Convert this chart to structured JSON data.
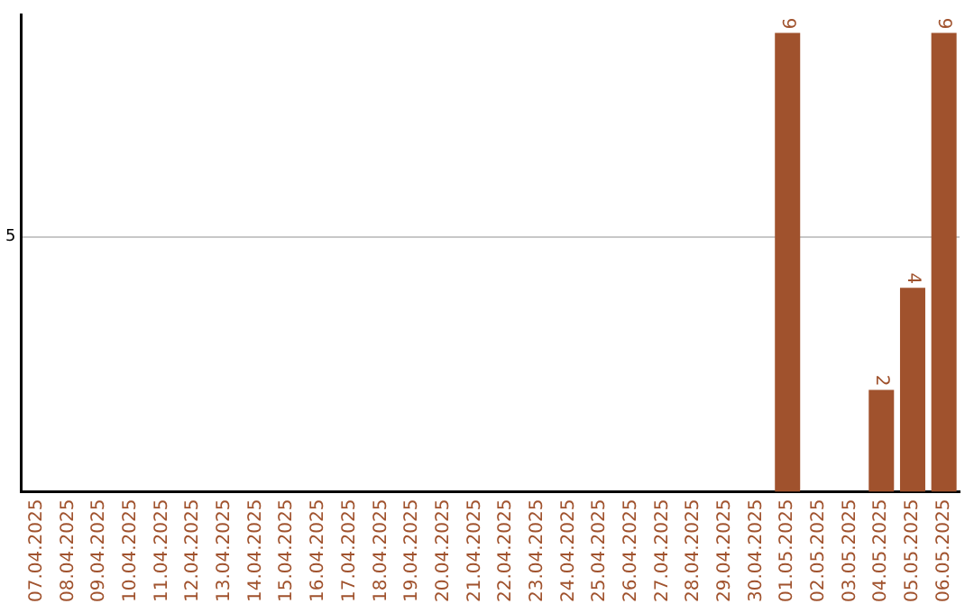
{
  "chart_data": {
    "type": "bar",
    "categories": [
      "07.04.2025",
      "08.04.2025",
      "09.04.2025",
      "10.04.2025",
      "11.04.2025",
      "12.04.2025",
      "13.04.2025",
      "14.04.2025",
      "15.04.2025",
      "16.04.2025",
      "17.04.2025",
      "18.04.2025",
      "19.04.2025",
      "20.04.2025",
      "21.04.2025",
      "22.04.2025",
      "23.04.2025",
      "24.04.2025",
      "25.04.2025",
      "26.04.2025",
      "27.04.2025",
      "28.04.2025",
      "29.04.2025",
      "30.04.2025",
      "01.05.2025",
      "02.05.2025",
      "03.05.2025",
      "04.05.2025",
      "05.05.2025",
      "06.05.2025"
    ],
    "values": [
      null,
      null,
      null,
      null,
      null,
      null,
      null,
      null,
      null,
      null,
      null,
      null,
      null,
      null,
      null,
      null,
      null,
      null,
      null,
      null,
      null,
      null,
      null,
      null,
      9,
      null,
      null,
      2,
      4,
      9
    ],
    "value_labels": [
      null,
      null,
      null,
      null,
      null,
      null,
      null,
      null,
      null,
      null,
      null,
      null,
      null,
      null,
      null,
      null,
      null,
      null,
      null,
      null,
      null,
      null,
      null,
      null,
      "9",
      null,
      null,
      "2",
      "4",
      "9"
    ],
    "color": "#a0522d",
    "ylim": [
      0,
      9.35
    ],
    "yticks": [
      5
    ],
    "grid": "y",
    "legend": false
  }
}
